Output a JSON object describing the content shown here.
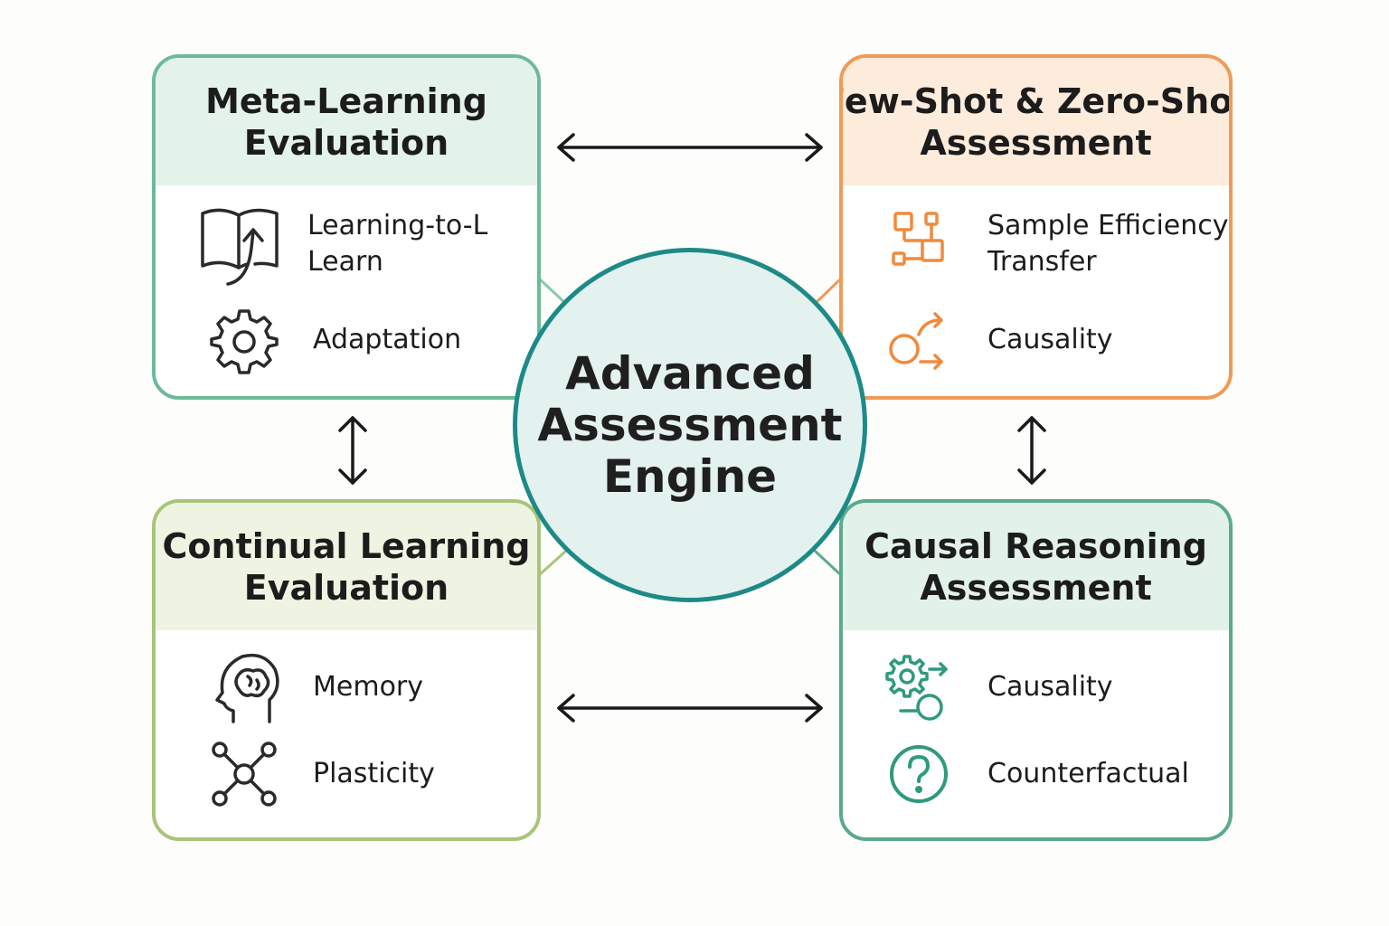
{
  "diagram": {
    "hub": {
      "lines": [
        "Advanced",
        "Assessment",
        "Engine"
      ],
      "border_color": "#1d8a87",
      "fill_color": "#e3f1ef"
    },
    "cards": {
      "meta_learning": {
        "title_lines": [
          "Meta-Learning",
          "Evaluation"
        ],
        "accent_color": "#6dba9a",
        "items": [
          {
            "icon": "book-arrow-icon",
            "label_lines": [
              "Learning-to-L",
              "Learn"
            ]
          },
          {
            "icon": "gear-icon",
            "label_lines": [
              "Adaptation"
            ]
          }
        ]
      },
      "few_shot": {
        "title_lines": [
          "Few-Shot & Zero-Shot",
          "Assessment"
        ],
        "accent_color": "#f19a55",
        "items": [
          {
            "icon": "flow-blocks-icon",
            "label_lines": [
              "Sample Efficiency",
              "Transfer"
            ]
          },
          {
            "icon": "circle-arrows-icon",
            "label_lines": [
              "Causality"
            ]
          }
        ]
      },
      "continual": {
        "title_lines": [
          "Continual Learning",
          "Evaluation"
        ],
        "accent_color": "#a8c47a",
        "items": [
          {
            "icon": "brain-head-icon",
            "label_lines": [
              "Memory"
            ]
          },
          {
            "icon": "network-nodes-icon",
            "label_lines": [
              "Plasticity"
            ]
          }
        ]
      },
      "causal": {
        "title_lines": [
          "Causal Reasoning",
          "Assessment"
        ],
        "accent_color": "#5aab8a",
        "items": [
          {
            "icon": "gear-circle-arrow-icon",
            "label_lines": [
              "Causality"
            ]
          },
          {
            "icon": "question-circle-icon",
            "label_lines": [
              "Counterfactual"
            ]
          }
        ]
      }
    },
    "connectors": [
      {
        "from": "meta_learning",
        "to": "few_shot",
        "direction": "bidirectional"
      },
      {
        "from": "continual",
        "to": "causal",
        "direction": "bidirectional"
      },
      {
        "from": "meta_learning",
        "to": "continual",
        "direction": "bidirectional"
      },
      {
        "from": "few_shot",
        "to": "causal",
        "direction": "bidirectional"
      }
    ]
  }
}
